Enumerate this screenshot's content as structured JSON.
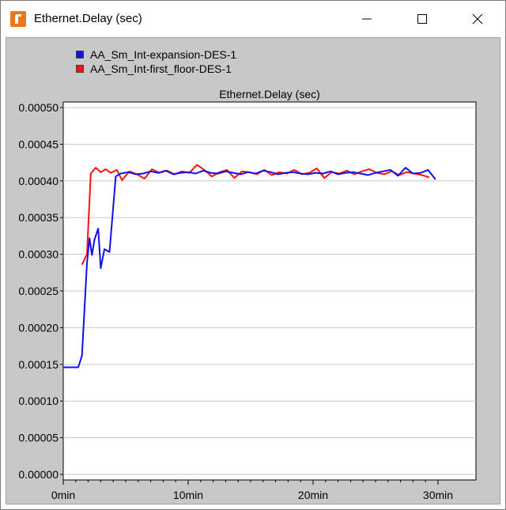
{
  "window": {
    "title": "Ethernet.Delay (sec)",
    "icon": "opnet-app-icon",
    "controls": [
      "minimize-icon",
      "maximize-icon",
      "close-icon"
    ]
  },
  "legend": {
    "entries": [
      {
        "name": "AA_Sm_Int-expansion-DES-1",
        "color": "#1010e8"
      },
      {
        "name": "AA_Sm_Int-first_floor-DES-1",
        "color": "#ff1010"
      }
    ]
  },
  "chart_data": {
    "type": "line",
    "title": "Ethernet.Delay (sec)",
    "xlabel": "",
    "ylabel": "",
    "xlim": [
      0,
      30
    ],
    "ylim": [
      0,
      0.0005
    ],
    "x_ticks": [
      0,
      10,
      20,
      30
    ],
    "x_tick_labels": [
      "0min",
      "10min",
      "20min",
      "30min"
    ],
    "y_ticks": [
      0,
      5e-05,
      0.0001,
      0.00015,
      0.0002,
      0.00025,
      0.0003,
      0.00035,
      0.0004,
      0.00045,
      0.0005
    ],
    "y_tick_labels": [
      "0.00000",
      "0.00005",
      "0.00010",
      "0.00015",
      "0.00020",
      "0.00025",
      "0.00030",
      "0.00035",
      "0.00040",
      "0.00045",
      "0.00050"
    ],
    "grid": true,
    "legend_position": "top-left",
    "series": [
      {
        "name": "AA_Sm_Int-expansion-DES-1",
        "color": "#1010e8",
        "x": [
          0,
          1.2,
          1.5,
          1.9,
          2.1,
          2.3,
          2.5,
          2.8,
          3.0,
          3.3,
          3.7,
          4.2,
          4.6,
          5.2,
          5.8,
          6.4,
          7.0,
          7.6,
          8.2,
          8.8,
          9.4,
          10.0,
          10.6,
          11.2,
          11.8,
          12.4,
          13.0,
          13.6,
          14.2,
          14.8,
          15.4,
          16.0,
          16.6,
          17.2,
          17.8,
          18.4,
          19.0,
          19.6,
          20.2,
          20.8,
          21.4,
          22.0,
          22.6,
          23.2,
          23.8,
          24.4,
          25.0,
          25.6,
          26.2,
          26.8,
          27.4,
          28.0,
          28.6,
          29.2,
          29.8
        ],
        "y": [
          0.000146,
          0.000146,
          0.000162,
          0.000288,
          0.000322,
          0.000299,
          0.00032,
          0.000335,
          0.000281,
          0.000307,
          0.000303,
          0.000406,
          0.00041,
          0.000412,
          0.000409,
          0.00041,
          0.000413,
          0.000411,
          0.000414,
          0.000409,
          0.000411,
          0.000412,
          0.00041,
          0.000414,
          0.000411,
          0.00041,
          0.000413,
          0.000411,
          0.000409,
          0.000412,
          0.00041,
          0.000414,
          0.000412,
          0.000409,
          0.000411,
          0.000412,
          0.00041,
          0.000409,
          0.000411,
          0.00041,
          0.000413,
          0.000409,
          0.000411,
          0.000412,
          0.00041,
          0.000408,
          0.000411,
          0.000413,
          0.000415,
          0.000407,
          0.000418,
          0.00041,
          0.000411,
          0.000415,
          0.000402
        ]
      },
      {
        "name": "AA_Sm_Int-first_floor-DES-1",
        "color": "#ff1010",
        "x": [
          1.5,
          1.9,
          2.2,
          2.6,
          3.0,
          3.4,
          3.8,
          4.3,
          4.7,
          5.3,
          5.9,
          6.5,
          7.1,
          7.7,
          8.3,
          8.9,
          9.5,
          10.1,
          10.7,
          11.3,
          11.9,
          12.5,
          13.1,
          13.7,
          14.3,
          14.9,
          15.5,
          16.1,
          16.7,
          17.3,
          17.9,
          18.5,
          19.1,
          19.7,
          20.3,
          20.9,
          21.5,
          22.1,
          22.7,
          23.3,
          23.9,
          24.5,
          25.1,
          25.7,
          26.3,
          26.9,
          27.5,
          28.1,
          28.7,
          29.3
        ],
        "y": [
          0.000286,
          0.0003,
          0.00041,
          0.000418,
          0.000412,
          0.000416,
          0.000411,
          0.000415,
          0.000401,
          0.000413,
          0.000409,
          0.000403,
          0.000416,
          0.000411,
          0.000414,
          0.000409,
          0.000413,
          0.000411,
          0.000422,
          0.000415,
          0.000406,
          0.000412,
          0.000415,
          0.000404,
          0.000413,
          0.000412,
          0.000409,
          0.000415,
          0.000408,
          0.000412,
          0.00041,
          0.000415,
          0.000409,
          0.000411,
          0.000417,
          0.000404,
          0.000412,
          0.00041,
          0.000414,
          0.000409,
          0.000413,
          0.000416,
          0.000411,
          0.000409,
          0.000413,
          0.000408,
          0.000412,
          0.00041,
          0.000408,
          0.000405
        ]
      }
    ]
  }
}
